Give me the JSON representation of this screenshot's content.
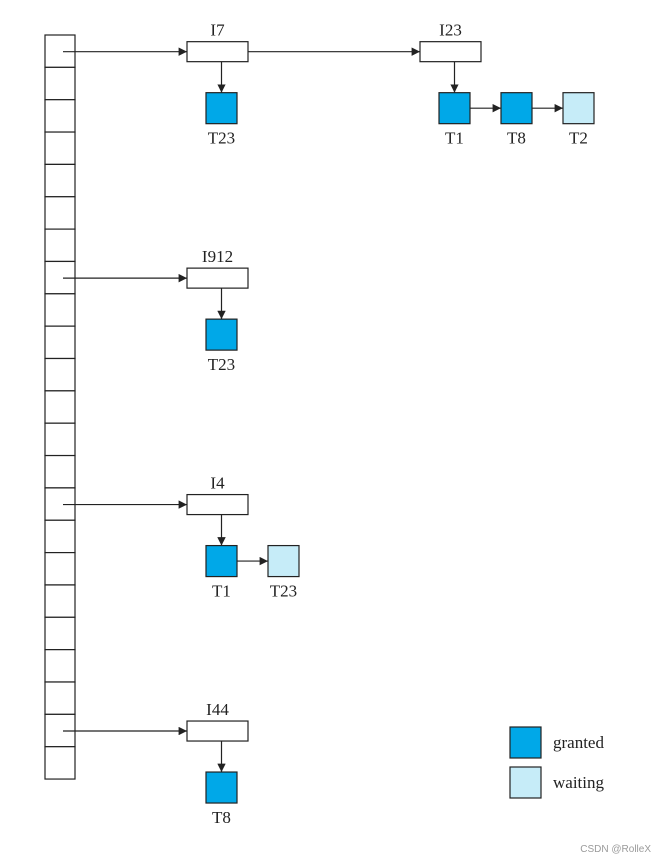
{
  "colors": {
    "granted": "#00a8e8",
    "waiting": "#c6ecf8",
    "stroke": "#222222",
    "text": "#222222"
  },
  "hash_table": {
    "bucket_count": 23
  },
  "chains": [
    {
      "items": [
        {
          "label": "I7",
          "requests": [
            {
              "label": "T23",
              "status": "granted"
            }
          ]
        },
        {
          "label": "I23",
          "requests": [
            {
              "label": "T1",
              "status": "granted"
            },
            {
              "label": "T8",
              "status": "granted"
            },
            {
              "label": "T2",
              "status": "waiting"
            }
          ]
        }
      ]
    },
    {
      "items": [
        {
          "label": "I912",
          "requests": [
            {
              "label": "T23",
              "status": "granted"
            }
          ]
        }
      ]
    },
    {
      "items": [
        {
          "label": "I4",
          "requests": [
            {
              "label": "T1",
              "status": "granted"
            },
            {
              "label": "T23",
              "status": "waiting"
            }
          ]
        }
      ]
    },
    {
      "items": [
        {
          "label": "I44",
          "requests": [
            {
              "label": "T8",
              "status": "granted"
            }
          ]
        }
      ]
    }
  ],
  "legend": {
    "granted_label": "granted",
    "waiting_label": "waiting"
  },
  "watermark": "CSDN @RolleX"
}
